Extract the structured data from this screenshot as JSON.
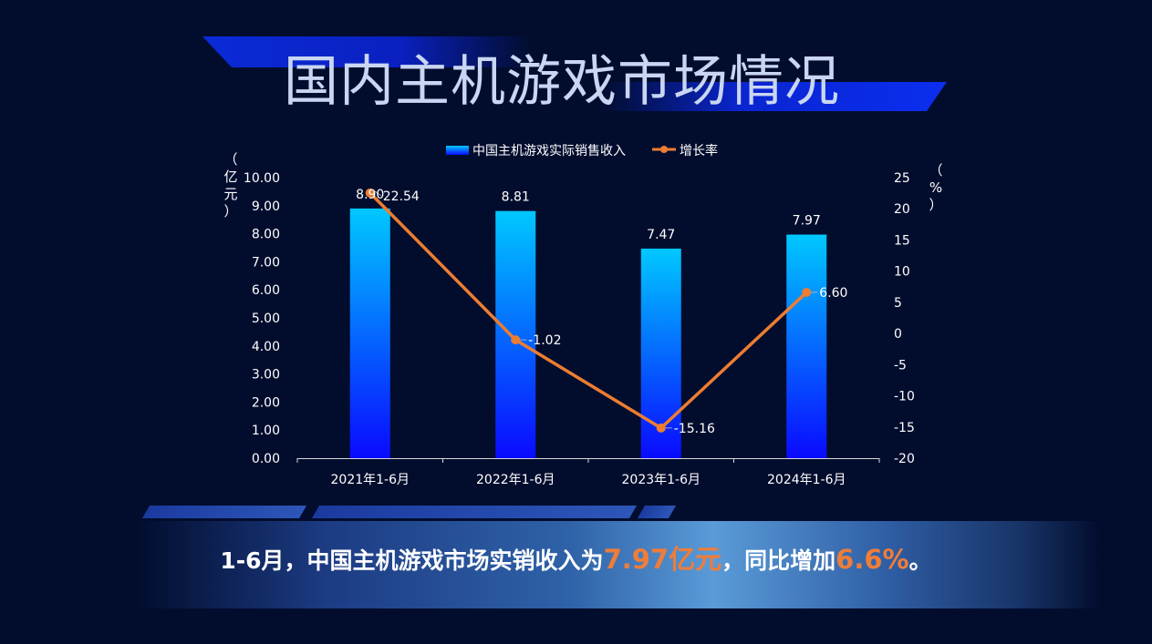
{
  "title": "国内主机游戏市场情况",
  "summary": {
    "prefix": "1-6月，中国主机游戏市场实销收入为",
    "value1": "7.97亿元",
    "middle": "，同比增加",
    "value2": "6.6%",
    "suffix": "。"
  },
  "colors": {
    "bar_top": "#00c8ff",
    "bar_bottom": "#0a0aff",
    "line": "#ed7d31",
    "text": "#ffffff"
  },
  "chart_data": {
    "type": "bar",
    "categories": [
      "2021年1-6月",
      "2022年1-6月",
      "2023年1-6月",
      "2024年1-6月"
    ],
    "series": [
      {
        "name": "中国主机游戏实际销售收入",
        "type": "bar",
        "axis": "left",
        "values": [
          8.9,
          8.81,
          7.47,
          7.97
        ],
        "labels": [
          "8.90",
          "8.81",
          "7.47",
          "7.97"
        ]
      },
      {
        "name": "增长率",
        "type": "line",
        "axis": "right",
        "values": [
          22.54,
          -1.02,
          -15.16,
          6.6
        ],
        "labels": [
          "22.54",
          "-1.02",
          "-15.16",
          "6.60"
        ]
      }
    ],
    "ylabel": "（亿元）",
    "y2label": "（%）",
    "ylim": [
      0,
      10
    ],
    "y2lim": [
      -20,
      25
    ],
    "yticks": [
      "0.00",
      "1.00",
      "2.00",
      "3.00",
      "4.00",
      "5.00",
      "6.00",
      "7.00",
      "8.00",
      "9.00",
      "10.00"
    ],
    "y2ticks": [
      "-20",
      "-15",
      "-10",
      "-5",
      "0",
      "5",
      "10",
      "15",
      "20",
      "25"
    ],
    "legend": "top-center"
  }
}
